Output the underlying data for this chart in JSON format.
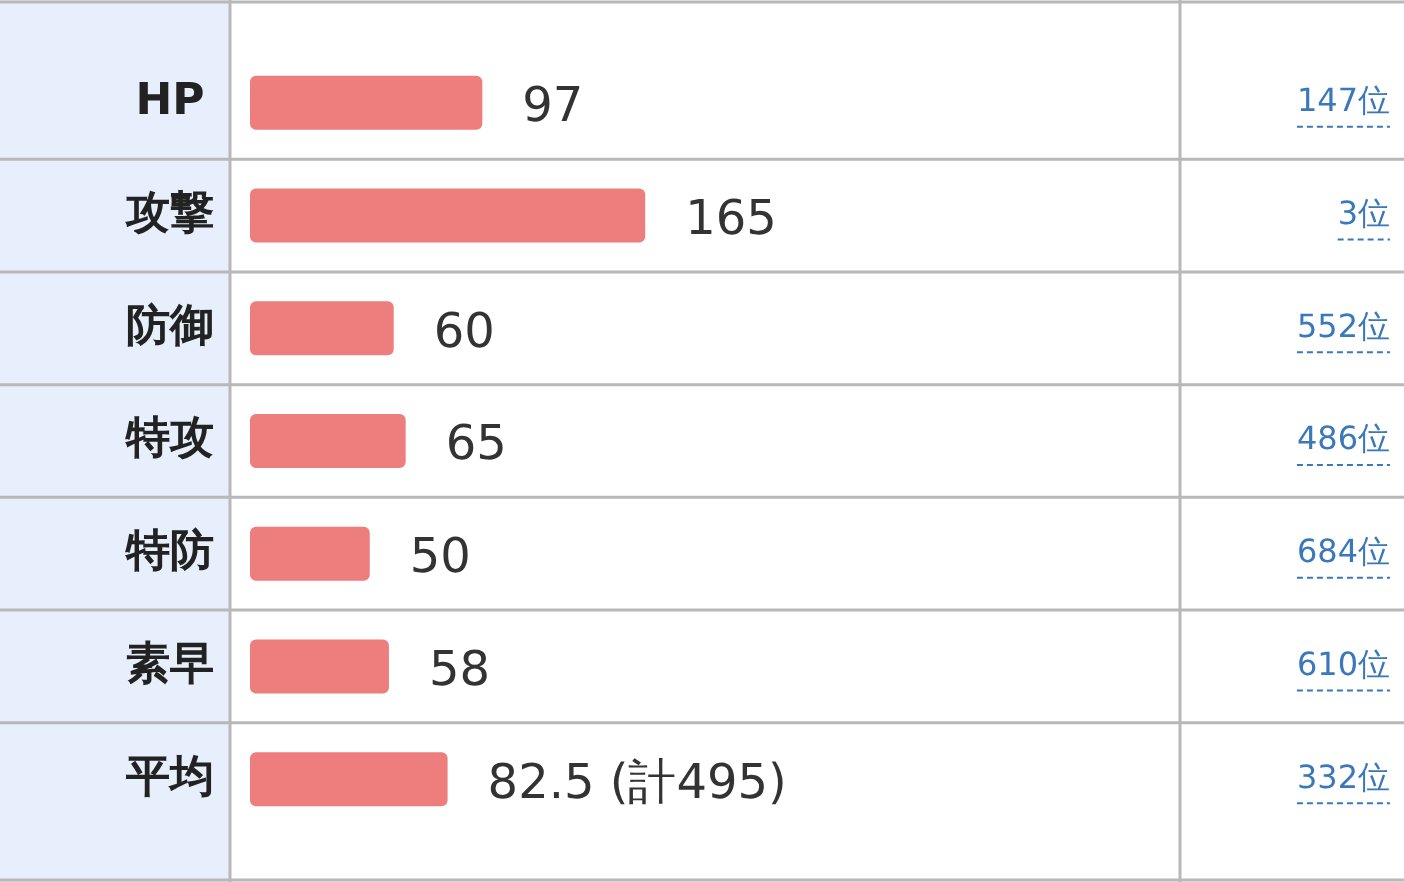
{
  "chart_data": {
    "type": "bar",
    "orientation": "horizontal",
    "categories": [
      "HP",
      "攻撃",
      "防御",
      "特攻",
      "特防",
      "素早",
      "平均"
    ],
    "values": [
      97,
      165,
      60,
      65,
      50,
      58,
      82.5
    ],
    "value_labels": [
      "97",
      "165",
      "60",
      "65",
      "50",
      "58",
      "82.5 (計495)"
    ],
    "color": "#ee7d7d",
    "grid": "y",
    "legend": false,
    "annotations": [
      "147位",
      "3位",
      "552位",
      "486位",
      "684位",
      "610位",
      "332位"
    ]
  }
}
